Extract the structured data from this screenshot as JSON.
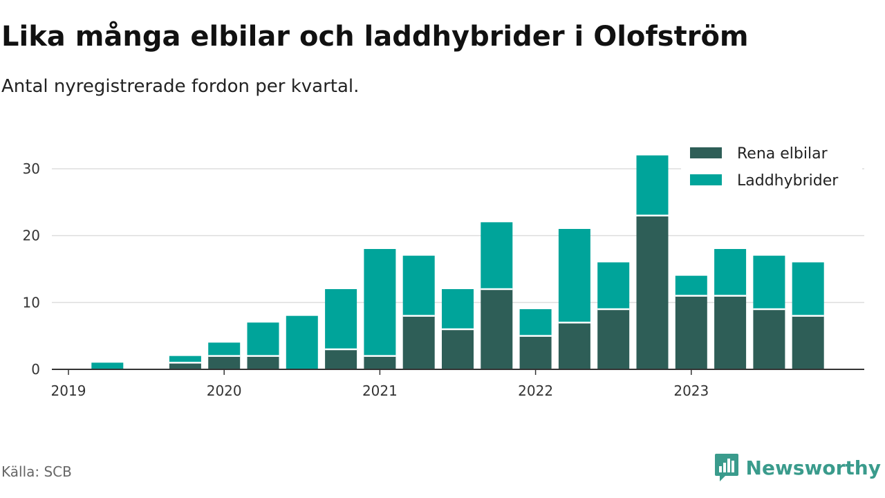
{
  "title": "Lika många elbilar och laddhybrider i Olofström",
  "subtitle": "Antal nyregistrerade fordon per kvartal.",
  "source": "Källa: SCB",
  "brand": {
    "name": "Newsworthy",
    "icon": "newsworthy-logo-icon",
    "color": "#3a9b8c"
  },
  "colors": {
    "elbilar": "#2e5e57",
    "laddhybrider": "#00a49a",
    "grid": "#dddddd",
    "axis": "#333333"
  },
  "chart_data": {
    "type": "bar",
    "stacked": true,
    "title": "Lika många elbilar och laddhybrider i Olofström",
    "subtitle": "Antal nyregistrerade fordon per kvartal.",
    "xlabel": "",
    "ylabel": "",
    "ylim": [
      0,
      33
    ],
    "yticks": [
      0,
      10,
      20,
      30
    ],
    "grid": true,
    "legend_position": "top-right",
    "categories": [
      "2019 Q1",
      "2019 Q2",
      "2019 Q3",
      "2019 Q4",
      "2020 Q1",
      "2020 Q2",
      "2020 Q3",
      "2020 Q4",
      "2021 Q1",
      "2021 Q2",
      "2021 Q3",
      "2021 Q4",
      "2022 Q1",
      "2022 Q2",
      "2022 Q3",
      "2022 Q4",
      "2023 Q1",
      "2023 Q2",
      "2023 Q3",
      "2023 Q4"
    ],
    "x_tick_labels": [
      "2019",
      "2020",
      "2021",
      "2022",
      "2023"
    ],
    "series": [
      {
        "name": "Rena elbilar",
        "color": "#2e5e57",
        "values": [
          0,
          0,
          0,
          1,
          2,
          2,
          0,
          3,
          2,
          8,
          6,
          12,
          5,
          7,
          9,
          23,
          11,
          11,
          9,
          8
        ]
      },
      {
        "name": "Laddhybrider",
        "color": "#00a49a",
        "values": [
          0,
          1,
          0,
          1,
          2,
          5,
          8,
          9,
          16,
          9,
          6,
          10,
          4,
          14,
          7,
          9,
          3,
          7,
          8,
          8
        ]
      }
    ]
  }
}
